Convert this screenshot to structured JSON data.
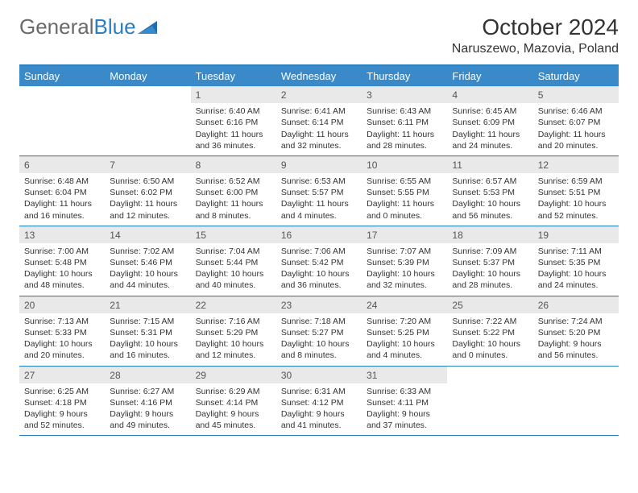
{
  "brand": {
    "name1": "General",
    "name2": "Blue"
  },
  "title": "October 2024",
  "location": "Naruszewo, Mazovia, Poland",
  "colors": {
    "header_bg": "#3a8ac9",
    "border": "#2a7fbf",
    "daynum_bg": "#e9e9e9",
    "text": "#333333",
    "logo_gray": "#6a6a6a",
    "logo_blue": "#2a7fbf"
  },
  "layout": {
    "cell_fontsize": 10.5,
    "header_fontsize": 13,
    "title_fontsize": 28,
    "location_fontsize": 16
  },
  "daynames": [
    "Sunday",
    "Monday",
    "Tuesday",
    "Wednesday",
    "Thursday",
    "Friday",
    "Saturday"
  ],
  "weeks": [
    [
      null,
      null,
      {
        "n": "1",
        "sr": "6:40 AM",
        "ss": "6:16 PM",
        "dl": "11 hours and 36 minutes."
      },
      {
        "n": "2",
        "sr": "6:41 AM",
        "ss": "6:14 PM",
        "dl": "11 hours and 32 minutes."
      },
      {
        "n": "3",
        "sr": "6:43 AM",
        "ss": "6:11 PM",
        "dl": "11 hours and 28 minutes."
      },
      {
        "n": "4",
        "sr": "6:45 AM",
        "ss": "6:09 PM",
        "dl": "11 hours and 24 minutes."
      },
      {
        "n": "5",
        "sr": "6:46 AM",
        "ss": "6:07 PM",
        "dl": "11 hours and 20 minutes."
      }
    ],
    [
      {
        "n": "6",
        "sr": "6:48 AM",
        "ss": "6:04 PM",
        "dl": "11 hours and 16 minutes."
      },
      {
        "n": "7",
        "sr": "6:50 AM",
        "ss": "6:02 PM",
        "dl": "11 hours and 12 minutes."
      },
      {
        "n": "8",
        "sr": "6:52 AM",
        "ss": "6:00 PM",
        "dl": "11 hours and 8 minutes."
      },
      {
        "n": "9",
        "sr": "6:53 AM",
        "ss": "5:57 PM",
        "dl": "11 hours and 4 minutes."
      },
      {
        "n": "10",
        "sr": "6:55 AM",
        "ss": "5:55 PM",
        "dl": "11 hours and 0 minutes."
      },
      {
        "n": "11",
        "sr": "6:57 AM",
        "ss": "5:53 PM",
        "dl": "10 hours and 56 minutes."
      },
      {
        "n": "12",
        "sr": "6:59 AM",
        "ss": "5:51 PM",
        "dl": "10 hours and 52 minutes."
      }
    ],
    [
      {
        "n": "13",
        "sr": "7:00 AM",
        "ss": "5:48 PM",
        "dl": "10 hours and 48 minutes."
      },
      {
        "n": "14",
        "sr": "7:02 AM",
        "ss": "5:46 PM",
        "dl": "10 hours and 44 minutes."
      },
      {
        "n": "15",
        "sr": "7:04 AM",
        "ss": "5:44 PM",
        "dl": "10 hours and 40 minutes."
      },
      {
        "n": "16",
        "sr": "7:06 AM",
        "ss": "5:42 PM",
        "dl": "10 hours and 36 minutes."
      },
      {
        "n": "17",
        "sr": "7:07 AM",
        "ss": "5:39 PM",
        "dl": "10 hours and 32 minutes."
      },
      {
        "n": "18",
        "sr": "7:09 AM",
        "ss": "5:37 PM",
        "dl": "10 hours and 28 minutes."
      },
      {
        "n": "19",
        "sr": "7:11 AM",
        "ss": "5:35 PM",
        "dl": "10 hours and 24 minutes."
      }
    ],
    [
      {
        "n": "20",
        "sr": "7:13 AM",
        "ss": "5:33 PM",
        "dl": "10 hours and 20 minutes."
      },
      {
        "n": "21",
        "sr": "7:15 AM",
        "ss": "5:31 PM",
        "dl": "10 hours and 16 minutes."
      },
      {
        "n": "22",
        "sr": "7:16 AM",
        "ss": "5:29 PM",
        "dl": "10 hours and 12 minutes."
      },
      {
        "n": "23",
        "sr": "7:18 AM",
        "ss": "5:27 PM",
        "dl": "10 hours and 8 minutes."
      },
      {
        "n": "24",
        "sr": "7:20 AM",
        "ss": "5:25 PM",
        "dl": "10 hours and 4 minutes."
      },
      {
        "n": "25",
        "sr": "7:22 AM",
        "ss": "5:22 PM",
        "dl": "10 hours and 0 minutes."
      },
      {
        "n": "26",
        "sr": "7:24 AM",
        "ss": "5:20 PM",
        "dl": "9 hours and 56 minutes."
      }
    ],
    [
      {
        "n": "27",
        "sr": "6:25 AM",
        "ss": "4:18 PM",
        "dl": "9 hours and 52 minutes."
      },
      {
        "n": "28",
        "sr": "6:27 AM",
        "ss": "4:16 PM",
        "dl": "9 hours and 49 minutes."
      },
      {
        "n": "29",
        "sr": "6:29 AM",
        "ss": "4:14 PM",
        "dl": "9 hours and 45 minutes."
      },
      {
        "n": "30",
        "sr": "6:31 AM",
        "ss": "4:12 PM",
        "dl": "9 hours and 41 minutes."
      },
      {
        "n": "31",
        "sr": "6:33 AM",
        "ss": "4:11 PM",
        "dl": "9 hours and 37 minutes."
      },
      null,
      null
    ]
  ]
}
